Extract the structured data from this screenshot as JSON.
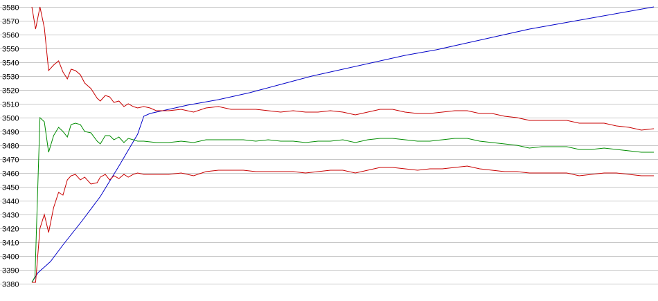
{
  "chart_data": {
    "type": "line",
    "title": "",
    "xlabel": "",
    "ylabel": "",
    "ylim": [
      3380,
      3580
    ],
    "y_ticks": [
      3580,
      3570,
      3560,
      3550,
      3540,
      3530,
      3520,
      3510,
      3500,
      3490,
      3480,
      3470,
      3460,
      3450,
      3440,
      3430,
      3420,
      3410,
      3400,
      3390,
      3380
    ],
    "x_range": [
      0,
      100
    ],
    "grid": "horizontal",
    "legend": "none",
    "series": [
      {
        "color": "#0000c8",
        "points": [
          [
            0,
            3381
          ],
          [
            1,
            3388
          ],
          [
            2,
            3392
          ],
          [
            3,
            3396
          ],
          [
            5,
            3408
          ],
          [
            8,
            3425
          ],
          [
            11,
            3443
          ],
          [
            14,
            3465
          ],
          [
            17,
            3488
          ],
          [
            18,
            3501
          ],
          [
            19,
            3503
          ],
          [
            22,
            3506
          ],
          [
            25,
            3509
          ],
          [
            30,
            3513
          ],
          [
            35,
            3518
          ],
          [
            40,
            3524
          ],
          [
            45,
            3530
          ],
          [
            50,
            3535
          ],
          [
            55,
            3540
          ],
          [
            60,
            3545
          ],
          [
            65,
            3549
          ],
          [
            70,
            3554
          ],
          [
            75,
            3559
          ],
          [
            80,
            3564
          ],
          [
            85,
            3568
          ],
          [
            90,
            3572
          ],
          [
            95,
            3576
          ],
          [
            100,
            3580
          ]
        ]
      },
      {
        "color": "#c80000",
        "points": [
          [
            0,
            3580
          ],
          [
            0.6,
            3564
          ],
          [
            1.3,
            3580
          ],
          [
            2,
            3565
          ],
          [
            2.7,
            3534
          ],
          [
            3.5,
            3538
          ],
          [
            4.3,
            3541
          ],
          [
            5,
            3533
          ],
          [
            5.7,
            3528
          ],
          [
            6.3,
            3535
          ],
          [
            7,
            3534
          ],
          [
            7.8,
            3531
          ],
          [
            8.5,
            3525
          ],
          [
            9.5,
            3521
          ],
          [
            10.5,
            3514
          ],
          [
            11,
            3512
          ],
          [
            11.8,
            3516
          ],
          [
            12.5,
            3515
          ],
          [
            13.2,
            3511
          ],
          [
            14,
            3512
          ],
          [
            14.8,
            3508
          ],
          [
            15.5,
            3510
          ],
          [
            16.3,
            3508
          ],
          [
            17,
            3507
          ],
          [
            18,
            3508
          ],
          [
            19,
            3507
          ],
          [
            20,
            3505
          ],
          [
            22,
            3505
          ],
          [
            24,
            3506
          ],
          [
            26,
            3504
          ],
          [
            28,
            3507
          ],
          [
            30,
            3508
          ],
          [
            32,
            3506
          ],
          [
            34,
            3506
          ],
          [
            36,
            3506
          ],
          [
            38,
            3505
          ],
          [
            40,
            3504
          ],
          [
            42,
            3505
          ],
          [
            44,
            3504
          ],
          [
            46,
            3504
          ],
          [
            48,
            3505
          ],
          [
            50,
            3504
          ],
          [
            52,
            3502
          ],
          [
            54,
            3504
          ],
          [
            56,
            3506
          ],
          [
            58,
            3506
          ],
          [
            60,
            3504
          ],
          [
            62,
            3503
          ],
          [
            64,
            3503
          ],
          [
            66,
            3504
          ],
          [
            68,
            3505
          ],
          [
            70,
            3505
          ],
          [
            72,
            3503
          ],
          [
            74,
            3503
          ],
          [
            76,
            3501
          ],
          [
            78,
            3500
          ],
          [
            80,
            3498
          ],
          [
            82,
            3498
          ],
          [
            84,
            3498
          ],
          [
            86,
            3498
          ],
          [
            88,
            3496
          ],
          [
            90,
            3496
          ],
          [
            92,
            3496
          ],
          [
            94,
            3494
          ],
          [
            96,
            3493
          ],
          [
            98,
            3491
          ],
          [
            100,
            3492
          ]
        ]
      },
      {
        "color": "#008c00",
        "points": [
          [
            0,
            3381
          ],
          [
            0.5,
            3385
          ],
          [
            1.3,
            3500
          ],
          [
            2,
            3497
          ],
          [
            2.7,
            3475
          ],
          [
            3.5,
            3487
          ],
          [
            4.3,
            3493
          ],
          [
            5,
            3490
          ],
          [
            5.7,
            3486
          ],
          [
            6.3,
            3495
          ],
          [
            7,
            3496
          ],
          [
            7.8,
            3495
          ],
          [
            8.5,
            3490
          ],
          [
            9.5,
            3489
          ],
          [
            10.5,
            3483
          ],
          [
            11,
            3481
          ],
          [
            11.8,
            3487
          ],
          [
            12.5,
            3487
          ],
          [
            13.2,
            3484
          ],
          [
            14,
            3486
          ],
          [
            14.8,
            3482
          ],
          [
            15.5,
            3485
          ],
          [
            16.3,
            3484
          ],
          [
            17,
            3483
          ],
          [
            18,
            3483
          ],
          [
            20,
            3482
          ],
          [
            22,
            3482
          ],
          [
            24,
            3483
          ],
          [
            26,
            3482
          ],
          [
            28,
            3484
          ],
          [
            30,
            3484
          ],
          [
            32,
            3484
          ],
          [
            34,
            3484
          ],
          [
            36,
            3483
          ],
          [
            38,
            3484
          ],
          [
            40,
            3483
          ],
          [
            42,
            3483
          ],
          [
            44,
            3482
          ],
          [
            46,
            3483
          ],
          [
            48,
            3483
          ],
          [
            50,
            3484
          ],
          [
            52,
            3482
          ],
          [
            54,
            3484
          ],
          [
            56,
            3485
          ],
          [
            58,
            3485
          ],
          [
            60,
            3484
          ],
          [
            62,
            3483
          ],
          [
            64,
            3483
          ],
          [
            66,
            3484
          ],
          [
            68,
            3485
          ],
          [
            70,
            3485
          ],
          [
            72,
            3483
          ],
          [
            74,
            3482
          ],
          [
            76,
            3481
          ],
          [
            78,
            3480
          ],
          [
            80,
            3478
          ],
          [
            82,
            3479
          ],
          [
            84,
            3479
          ],
          [
            86,
            3479
          ],
          [
            88,
            3477
          ],
          [
            90,
            3477
          ],
          [
            92,
            3478
          ],
          [
            94,
            3477
          ],
          [
            96,
            3476
          ],
          [
            98,
            3475
          ],
          [
            100,
            3475
          ]
        ]
      },
      {
        "color": "#c80000",
        "points": [
          [
            0,
            3381
          ],
          [
            0.6,
            3381
          ],
          [
            1.3,
            3420
          ],
          [
            2,
            3430
          ],
          [
            2.7,
            3417
          ],
          [
            3.5,
            3435
          ],
          [
            4.3,
            3446
          ],
          [
            5,
            3444
          ],
          [
            5.7,
            3455
          ],
          [
            6.3,
            3458
          ],
          [
            7,
            3459
          ],
          [
            7.8,
            3455
          ],
          [
            8.5,
            3457
          ],
          [
            9.5,
            3452
          ],
          [
            10.5,
            3453
          ],
          [
            11,
            3457
          ],
          [
            11.8,
            3459
          ],
          [
            12.5,
            3455
          ],
          [
            13.2,
            3458
          ],
          [
            14,
            3456
          ],
          [
            14.8,
            3459
          ],
          [
            15.5,
            3457
          ],
          [
            16.3,
            3459
          ],
          [
            17,
            3460
          ],
          [
            18,
            3459
          ],
          [
            20,
            3459
          ],
          [
            22,
            3459
          ],
          [
            24,
            3460
          ],
          [
            26,
            3458
          ],
          [
            28,
            3461
          ],
          [
            30,
            3462
          ],
          [
            32,
            3462
          ],
          [
            34,
            3462
          ],
          [
            36,
            3461
          ],
          [
            38,
            3461
          ],
          [
            40,
            3461
          ],
          [
            42,
            3461
          ],
          [
            44,
            3460
          ],
          [
            46,
            3461
          ],
          [
            48,
            3462
          ],
          [
            50,
            3462
          ],
          [
            52,
            3460
          ],
          [
            54,
            3462
          ],
          [
            56,
            3464
          ],
          [
            58,
            3464
          ],
          [
            60,
            3463
          ],
          [
            62,
            3462
          ],
          [
            64,
            3463
          ],
          [
            66,
            3463
          ],
          [
            68,
            3464
          ],
          [
            70,
            3465
          ],
          [
            72,
            3463
          ],
          [
            74,
            3462
          ],
          [
            76,
            3461
          ],
          [
            78,
            3461
          ],
          [
            80,
            3460
          ],
          [
            82,
            3460
          ],
          [
            84,
            3460
          ],
          [
            86,
            3460
          ],
          [
            88,
            3458
          ],
          [
            90,
            3459
          ],
          [
            92,
            3460
          ],
          [
            94,
            3460
          ],
          [
            96,
            3459
          ],
          [
            98,
            3458
          ],
          [
            100,
            3458
          ]
        ]
      }
    ]
  }
}
